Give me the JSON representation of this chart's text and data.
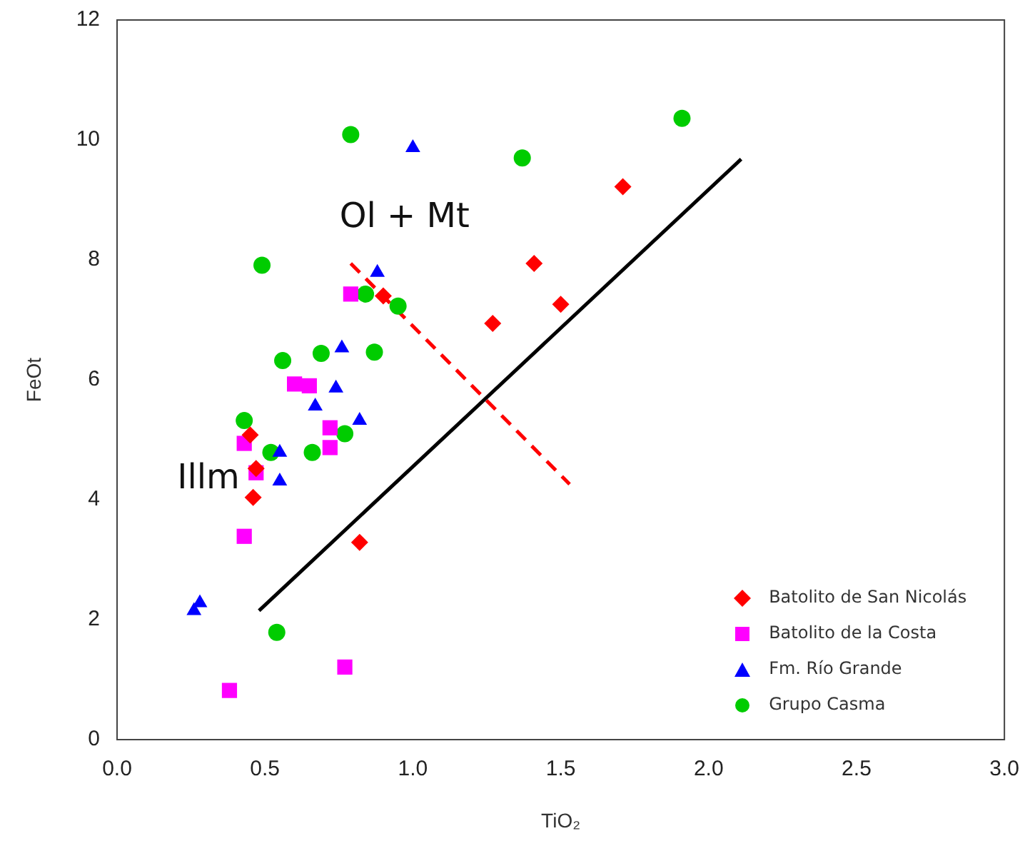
{
  "chart_data": {
    "type": "scatter",
    "xlabel": "TiO₂",
    "ylabel": "FeOt",
    "xlim": [
      0,
      3
    ],
    "xticks": [
      {
        "value": 0,
        "label": "0.0"
      },
      {
        "value": 0.5,
        "label": "0.5"
      },
      {
        "value": 1,
        "label": "1.0"
      },
      {
        "value": 1.5,
        "label": "1.5"
      },
      {
        "value": 2,
        "label": "2.0"
      },
      {
        "value": 2.5,
        "label": "2.5"
      },
      {
        "value": 3,
        "label": "3.0"
      }
    ],
    "ylim": [
      0,
      12
    ],
    "yticks": [
      0,
      2,
      4,
      6,
      8,
      10,
      12
    ],
    "grid": false,
    "legend": "bottom right",
    "series": [
      {
        "name": "Batolito de San Nicolás",
        "color": "#ff0000",
        "marker": "diamond",
        "x": [
          0.9,
          1.41,
          1.5,
          1.27,
          1.71,
          0.82,
          0.46,
          0.47,
          0.45
        ],
        "values": [
          7.4,
          7.94,
          7.26,
          6.94,
          9.22,
          3.29,
          4.04,
          4.52,
          5.08
        ]
      },
      {
        "name": "Batolito de la Costa",
        "color": "#ff00ff",
        "marker": "square",
        "x": [
          0.79,
          0.6,
          0.65,
          0.72,
          0.72,
          0.43,
          0.47,
          0.43,
          0.77,
          0.38
        ],
        "values": [
          7.43,
          5.93,
          5.9,
          5.2,
          4.87,
          4.94,
          4.45,
          3.39,
          1.21,
          0.82
        ]
      },
      {
        "name": "Fm. Río Grande",
        "color": "#0000ff",
        "marker": "triangle",
        "x": [
          1.0,
          0.88,
          0.76,
          0.74,
          0.67,
          0.82,
          0.55,
          0.55,
          0.28,
          0.26
        ],
        "values": [
          9.87,
          7.79,
          6.53,
          5.86,
          5.56,
          5.32,
          4.79,
          4.31,
          2.28,
          2.15
        ]
      },
      {
        "name": "Grupo Casma",
        "color": "#00cc00",
        "marker": "circle",
        "x": [
          0.79,
          1.37,
          1.91,
          0.49,
          0.84,
          0.95,
          0.56,
          0.69,
          0.87,
          0.43,
          0.52,
          0.66,
          0.77,
          0.54
        ],
        "values": [
          10.09,
          9.7,
          10.36,
          7.91,
          7.43,
          7.23,
          6.32,
          6.44,
          6.46,
          5.32,
          4.79,
          4.79,
          5.1,
          1.79
        ]
      },
      {
        "type": "line",
        "color": "#000000",
        "line_style": "solid",
        "marker": "none",
        "x": [
          0.48,
          2.11
        ],
        "values": [
          2.15,
          9.68
        ]
      },
      {
        "type": "line",
        "color": "#ff0000",
        "line_style": "dashed",
        "marker": "none",
        "x": [
          0.79,
          1.53
        ],
        "values": [
          7.94,
          4.26
        ]
      }
    ],
    "annotations": [
      "Ol + Mt",
      "Illm"
    ]
  }
}
